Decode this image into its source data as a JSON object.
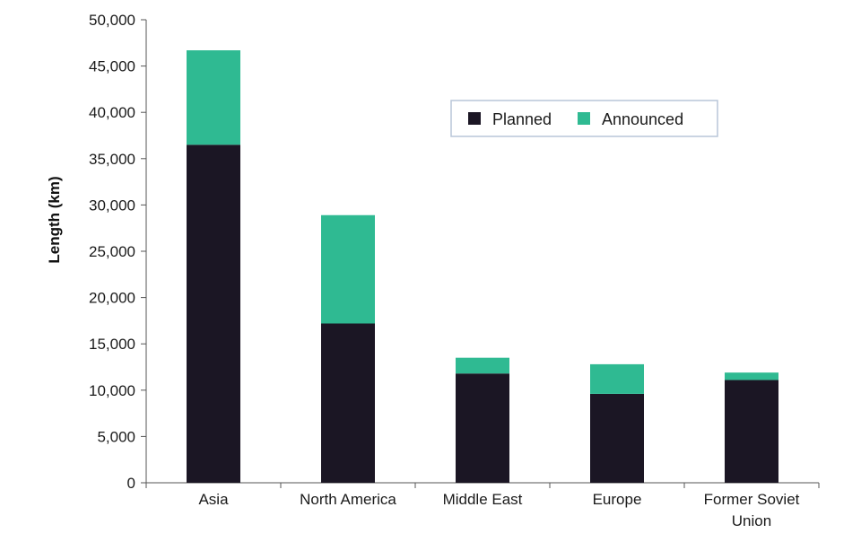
{
  "chart_data": {
    "type": "bar",
    "stacked": true,
    "title": "",
    "xlabel": "",
    "ylabel": "Length (km)",
    "ylim": [
      0,
      50000
    ],
    "yticks": [
      0,
      5000,
      10000,
      15000,
      20000,
      25000,
      30000,
      35000,
      40000,
      45000,
      50000
    ],
    "ytick_labels": [
      "0",
      "5,000",
      "10,000",
      "15,000",
      "20,000",
      "25,000",
      "30,000",
      "35,000",
      "40,000",
      "45,000",
      "50,000"
    ],
    "categories": [
      "Asia",
      "North America",
      "Middle East",
      "Europe",
      "Former Soviet Union"
    ],
    "category_lines": [
      [
        "Asia"
      ],
      [
        "North America"
      ],
      [
        "Middle East"
      ],
      [
        "Europe"
      ],
      [
        "Former Soviet",
        "Union"
      ]
    ],
    "series": [
      {
        "name": "Planned",
        "color": "#1b1624",
        "values": [
          36500,
          17200,
          11800,
          9600,
          11100
        ]
      },
      {
        "name": "Announced",
        "color": "#2fba92",
        "values": [
          10200,
          11700,
          1700,
          3200,
          800
        ]
      }
    ],
    "grid": false,
    "legend": {
      "placement": "top-right",
      "orientation": "horizontal",
      "border_color": "#b9c6d8"
    }
  }
}
